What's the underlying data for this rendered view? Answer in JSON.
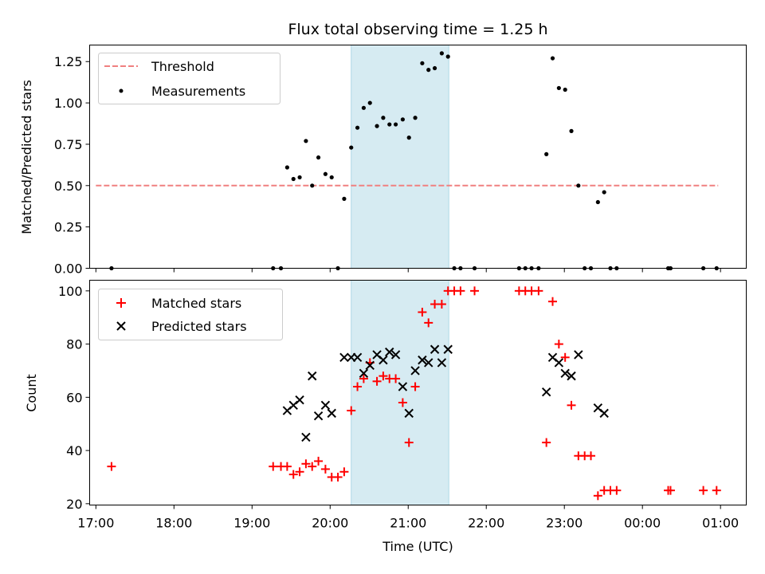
{
  "title": "Flux total observing time = 1.25 h",
  "top": {
    "ylabel": "Matched/Predicted stars",
    "ylim": [
      0,
      1.35
    ],
    "yticks": [
      0.0,
      0.25,
      0.5,
      0.75,
      1.0,
      1.25
    ],
    "ytick_labels": [
      "0.00",
      "0.25",
      "0.50",
      "0.75",
      "1.00",
      "1.25"
    ],
    "legend": {
      "position": "top-left",
      "threshold_label": "Threshold",
      "measurements_label": "Measurements"
    },
    "colors": {
      "threshold": "#f08080",
      "measurements": "#000000"
    }
  },
  "bottom": {
    "ylabel": "Count",
    "xlabel": "Time (UTC)",
    "ylim": [
      19.5,
      104
    ],
    "yticks": [
      20,
      40,
      60,
      80,
      100
    ],
    "ytick_labels": [
      "20",
      "40",
      "60",
      "80",
      "100"
    ],
    "legend": {
      "position": "top-left",
      "matched_label": "Matched stars",
      "predicted_label": "Predicted stars"
    },
    "colors": {
      "matched": "#ff0000",
      "predicted": "#000000"
    }
  },
  "xaxis": {
    "xlim": [
      16.92,
      25.33
    ],
    "ticks": [
      17,
      18,
      19,
      20,
      21,
      22,
      23,
      24,
      25
    ],
    "tick_labels": [
      "17:00",
      "18:00",
      "19:00",
      "20:00",
      "21:00",
      "22:00",
      "23:00",
      "00:00",
      "01:00"
    ]
  },
  "highlight": {
    "x_start": 20.27,
    "x_end": 21.52,
    "color": "#add8e6"
  },
  "chart_data": [
    {
      "type": "scatter",
      "title": "Flux total observing time = 1.25 h",
      "xlabel": "",
      "ylabel": "Matched/Predicted stars",
      "ylim": [
        0,
        1.35
      ],
      "threshold": {
        "name": "Threshold",
        "y": 0.5,
        "x": [
          17.0,
          24.97
        ]
      },
      "series": [
        {
          "name": "Measurements",
          "points": [
            [
              17.2,
              0.0
            ],
            [
              19.27,
              0.0
            ],
            [
              19.37,
              0.0
            ],
            [
              19.45,
              0.61
            ],
            [
              19.53,
              0.54
            ],
            [
              19.61,
              0.55
            ],
            [
              19.69,
              0.77
            ],
            [
              19.77,
              0.5
            ],
            [
              19.85,
              0.67
            ],
            [
              19.94,
              0.57
            ],
            [
              20.02,
              0.55
            ],
            [
              20.1,
              0.0
            ],
            [
              20.18,
              0.42
            ],
            [
              20.27,
              0.73
            ],
            [
              20.35,
              0.85
            ],
            [
              20.43,
              0.97
            ],
            [
              20.51,
              1.0
            ],
            [
              20.6,
              0.86
            ],
            [
              20.68,
              0.91
            ],
            [
              20.76,
              0.87
            ],
            [
              20.84,
              0.87
            ],
            [
              20.93,
              0.9
            ],
            [
              21.01,
              0.79
            ],
            [
              21.09,
              0.91
            ],
            [
              21.18,
              1.24
            ],
            [
              21.26,
              1.2
            ],
            [
              21.34,
              1.21
            ],
            [
              21.43,
              1.3
            ],
            [
              21.51,
              1.28
            ],
            [
              21.59,
              0.0
            ],
            [
              21.67,
              0.0
            ],
            [
              21.85,
              0.0
            ],
            [
              22.42,
              0.0
            ],
            [
              22.5,
              0.0
            ],
            [
              22.58,
              0.0
            ],
            [
              22.67,
              0.0
            ],
            [
              22.77,
              0.69
            ],
            [
              22.85,
              1.27
            ],
            [
              22.93,
              1.09
            ],
            [
              23.01,
              1.08
            ],
            [
              23.09,
              0.83
            ],
            [
              23.18,
              0.5
            ],
            [
              23.26,
              0.0
            ],
            [
              23.34,
              0.0
            ],
            [
              23.43,
              0.4
            ],
            [
              23.51,
              0.46
            ],
            [
              23.59,
              0.0
            ],
            [
              23.67,
              0.0
            ],
            [
              24.33,
              0.0
            ],
            [
              24.36,
              0.0
            ],
            [
              24.78,
              0.0
            ],
            [
              24.95,
              0.0
            ]
          ]
        }
      ]
    },
    {
      "type": "scatter",
      "xlabel": "Time (UTC)",
      "ylabel": "Count",
      "ylim": [
        19.5,
        104
      ],
      "series": [
        {
          "name": "Matched stars",
          "points": [
            [
              17.2,
              34
            ],
            [
              19.27,
              34
            ],
            [
              19.37,
              34
            ],
            [
              19.45,
              34
            ],
            [
              19.53,
              31
            ],
            [
              19.61,
              32
            ],
            [
              19.69,
              35
            ],
            [
              19.77,
              34
            ],
            [
              19.85,
              36
            ],
            [
              19.94,
              33
            ],
            [
              20.02,
              30
            ],
            [
              20.1,
              30
            ],
            [
              20.18,
              32
            ],
            [
              20.27,
              55
            ],
            [
              20.35,
              64
            ],
            [
              20.43,
              67
            ],
            [
              20.51,
              73
            ],
            [
              20.6,
              66
            ],
            [
              20.68,
              68
            ],
            [
              20.76,
              67
            ],
            [
              20.84,
              67
            ],
            [
              20.93,
              58
            ],
            [
              21.01,
              43
            ],
            [
              21.09,
              64
            ],
            [
              21.18,
              92
            ],
            [
              21.26,
              88
            ],
            [
              21.34,
              95
            ],
            [
              21.43,
              95
            ],
            [
              21.51,
              100
            ],
            [
              21.59,
              100
            ],
            [
              21.67,
              100
            ],
            [
              21.85,
              100
            ],
            [
              22.42,
              100
            ],
            [
              22.5,
              100
            ],
            [
              22.58,
              100
            ],
            [
              22.67,
              100
            ],
            [
              22.77,
              43
            ],
            [
              22.85,
              96
            ],
            [
              22.93,
              80
            ],
            [
              23.01,
              75
            ],
            [
              23.09,
              57
            ],
            [
              23.18,
              38
            ],
            [
              23.26,
              38
            ],
            [
              23.34,
              38
            ],
            [
              23.43,
              23
            ],
            [
              23.51,
              25
            ],
            [
              23.59,
              25
            ],
            [
              23.67,
              25
            ],
            [
              24.33,
              25
            ],
            [
              24.36,
              25
            ],
            [
              24.78,
              25
            ],
            [
              24.95,
              25
            ]
          ]
        },
        {
          "name": "Predicted stars",
          "points": [
            [
              19.45,
              55
            ],
            [
              19.53,
              57
            ],
            [
              19.61,
              59
            ],
            [
              19.69,
              45
            ],
            [
              19.77,
              68
            ],
            [
              19.85,
              53
            ],
            [
              19.94,
              57
            ],
            [
              20.02,
              54
            ],
            [
              20.18,
              75
            ],
            [
              20.27,
              75
            ],
            [
              20.35,
              75
            ],
            [
              20.43,
              69
            ],
            [
              20.51,
              72
            ],
            [
              20.6,
              76
            ],
            [
              20.68,
              74
            ],
            [
              20.76,
              77
            ],
            [
              20.84,
              76
            ],
            [
              20.93,
              64
            ],
            [
              21.01,
              54
            ],
            [
              21.09,
              70
            ],
            [
              21.18,
              74
            ],
            [
              21.26,
              73
            ],
            [
              21.34,
              78
            ],
            [
              21.43,
              73
            ],
            [
              21.51,
              78
            ],
            [
              22.77,
              62
            ],
            [
              22.85,
              75
            ],
            [
              22.93,
              73
            ],
            [
              23.01,
              69
            ],
            [
              23.09,
              68
            ],
            [
              23.18,
              76
            ],
            [
              23.43,
              56
            ],
            [
              23.51,
              54
            ]
          ]
        }
      ]
    }
  ]
}
